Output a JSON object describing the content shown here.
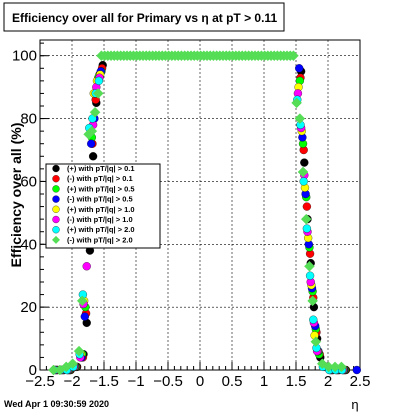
{
  "footer": {
    "timestamp": "Wed Apr  1 09:30:59 2020"
  },
  "chart_data": {
    "type": "scatter",
    "title": "Efficiency over all for Primary vs   η at pT > 0.11",
    "xlabel": "η",
    "ylabel": "Efficiency over all (%)",
    "xlim": [
      -2.5,
      2.5
    ],
    "ylim": [
      0,
      105
    ],
    "xticks": [
      -2.5,
      -2,
      -1.5,
      -1,
      -0.5,
      0,
      0.5,
      1,
      1.5,
      2,
      2.5
    ],
    "xtick_labels": [
      "−2.5",
      "−2",
      "−1.5",
      "−1",
      "−0.5",
      "0",
      "0.5",
      "1",
      "1.5",
      "2",
      "2.5"
    ],
    "yticks": [
      0,
      20,
      40,
      60,
      80,
      100
    ],
    "ytick_labels": [
      "0",
      "20",
      "40",
      "60",
      "80",
      "100"
    ],
    "grid": true,
    "legend_position": "center-left",
    "series": [
      {
        "name": "(+) with pT/|q| > 0.1",
        "color": "#000000",
        "offset": 0.03,
        "x": [
          -2.25,
          -2.15,
          -2.05,
          -1.95,
          -1.85,
          -1.8,
          -1.75,
          -1.7,
          -1.65,
          -1.6,
          -1.55,
          1.55,
          1.6,
          1.65,
          1.7,
          1.75,
          1.8,
          1.85,
          1.95,
          2.05,
          2.15,
          2.25
        ],
        "y": [
          0,
          0,
          0,
          1,
          5,
          15,
          38,
          68,
          85,
          94,
          97,
          95,
          66,
          48,
          34,
          20,
          10,
          4,
          1,
          0,
          0,
          0
        ]
      },
      {
        "name": "(-) with pT/|q| > 0.1",
        "color": "#ff0000",
        "offset": 0.02,
        "x": [
          -2.25,
          -2.15,
          -2.05,
          -1.95,
          -1.85,
          -1.8,
          -1.75,
          -1.7,
          -1.65,
          -1.6,
          -1.55,
          1.55,
          1.6,
          1.65,
          1.7,
          1.75,
          1.8,
          1.85,
          1.95,
          2.05,
          2.15,
          2.25
        ],
        "y": [
          0,
          0,
          0,
          1,
          4,
          18,
          42,
          72,
          86,
          93,
          96,
          93,
          70,
          52,
          37,
          23,
          12,
          5,
          1,
          0,
          0,
          0
        ]
      },
      {
        "name": "(+) with pT/|q| > 0.5",
        "color": "#00ff00",
        "offset": 0.01,
        "x": [
          -2.25,
          -2.15,
          -2.05,
          -1.95,
          -1.85,
          -1.8,
          -1.75,
          -1.7,
          -1.65,
          -1.6,
          -1.55,
          1.55,
          1.6,
          1.65,
          1.7,
          1.75,
          1.8,
          1.85,
          1.95,
          2.05,
          2.15,
          2.25
        ],
        "y": [
          0,
          0,
          0,
          1,
          5,
          20,
          45,
          74,
          88,
          93,
          95,
          92,
          72,
          55,
          39,
          25,
          13,
          5,
          1,
          0,
          0,
          0
        ]
      },
      {
        "name": "(-) with pT/|q| > 0.5",
        "color": "#0000ff",
        "offset": 0.0,
        "x": [
          -2.25,
          -2.15,
          -2.05,
          -1.95,
          -1.85,
          -1.8,
          -1.75,
          -1.7,
          -1.65,
          -1.6,
          -1.55,
          1.55,
          1.6,
          1.65,
          1.7,
          1.75,
          1.8,
          1.85,
          1.95,
          2.05,
          2.15,
          2.25,
          2.45
        ],
        "y": [
          0,
          0,
          0,
          1,
          4,
          17,
          40,
          72,
          80,
          92,
          95,
          96,
          74,
          56,
          40,
          26,
          14,
          6,
          1,
          0,
          0,
          0,
          0
        ]
      },
      {
        "name": "(+) with pT/|q| > 1.0",
        "color": "#ffff00",
        "offset": -0.01,
        "x": [
          -2.25,
          -2.15,
          -2.05,
          -1.95,
          -1.85,
          -1.8,
          -1.75,
          -1.7,
          -1.65,
          -1.6,
          -1.55,
          1.55,
          1.6,
          1.65,
          1.7,
          1.75,
          1.8,
          1.85,
          1.95,
          2.05,
          2.15,
          2.25
        ],
        "y": [
          0,
          0,
          0,
          1,
          5,
          22,
          50,
          76,
          88,
          92,
          94,
          90,
          76,
          58,
          42,
          27,
          11,
          6,
          1,
          0,
          0,
          0
        ]
      },
      {
        "name": "(-) with pT/|q| > 1.0",
        "color": "#ff00ff",
        "offset": -0.02,
        "x": [
          -2.25,
          -2.15,
          -2.05,
          -1.95,
          -1.85,
          -1.8,
          -1.75,
          -1.7,
          -1.65,
          -1.6,
          -1.55,
          1.55,
          1.6,
          1.65,
          1.7,
          1.75,
          1.8,
          1.85,
          1.95,
          2.05,
          2.15,
          2.25
        ],
        "y": [
          0,
          0,
          0,
          1,
          4,
          21,
          33,
          60,
          78,
          90,
          93,
          88,
          77,
          62,
          44,
          28,
          15,
          6,
          1,
          0,
          0,
          0
        ]
      },
      {
        "name": "(+) with pT/|q| > 2.0",
        "color": "#00ffff",
        "offset": -0.03,
        "x": [
          -2.25,
          -2.15,
          -2.05,
          -1.95,
          -1.85,
          -1.8,
          -1.75,
          -1.7,
          -1.65,
          -1.6,
          -1.55,
          1.55,
          1.6,
          1.65,
          1.7,
          1.75,
          1.8,
          1.85,
          1.95,
          2.05,
          2.15,
          2.25
        ],
        "y": [
          0,
          0,
          0,
          1,
          5,
          24,
          52,
          77,
          80,
          88,
          92,
          86,
          78,
          60,
          45,
          30,
          16,
          7,
          1,
          0,
          0,
          0
        ]
      },
      {
        "name": "(-) with pT/|q| > 2.0",
        "color": "#55dd55",
        "offset": -0.04,
        "x": [
          -2.25,
          -2.15,
          -2.05,
          -1.95,
          -1.85,
          -1.8,
          -1.75,
          -1.7,
          -1.65,
          -1.6,
          -1.55,
          -1.5,
          -1.45,
          -1.4,
          -1.35,
          -1.3,
          -1.25,
          -1.2,
          -1.15,
          -1.1,
          -1.05,
          -1.0,
          -0.95,
          -0.9,
          -0.85,
          -0.8,
          -0.75,
          -0.7,
          -0.65,
          -0.6,
          -0.55,
          -0.5,
          -0.45,
          -0.4,
          -0.35,
          -0.3,
          -0.25,
          -0.2,
          -0.15,
          -0.1,
          -0.05,
          0.0,
          0.05,
          0.1,
          0.15,
          0.2,
          0.25,
          0.3,
          0.35,
          0.4,
          0.45,
          0.5,
          0.55,
          0.6,
          0.65,
          0.7,
          0.75,
          0.8,
          0.85,
          0.9,
          0.95,
          1.0,
          1.05,
          1.1,
          1.15,
          1.2,
          1.25,
          1.3,
          1.35,
          1.4,
          1.45,
          1.5,
          1.55,
          1.6,
          1.65,
          1.7,
          1.75,
          1.8,
          1.85,
          1.95,
          2.05,
          2.15,
          2.25
        ],
        "y": [
          0,
          0,
          1,
          2,
          6,
          22,
          50,
          75,
          76,
          82,
          88,
          100,
          100,
          100,
          100,
          100,
          100,
          100,
          100,
          100,
          100,
          100,
          100,
          100,
          100,
          100,
          100,
          100,
          100,
          100,
          100,
          100,
          100,
          100,
          100,
          100,
          100,
          100,
          100,
          100,
          100,
          100,
          100,
          100,
          100,
          100,
          100,
          100,
          100,
          100,
          100,
          100,
          100,
          100,
          100,
          100,
          100,
          100,
          100,
          100,
          100,
          100,
          100,
          100,
          100,
          100,
          100,
          100,
          100,
          100,
          100,
          100,
          85,
          80,
          63,
          48,
          33,
          22,
          9,
          2,
          1,
          1,
          1
        ]
      }
    ]
  }
}
